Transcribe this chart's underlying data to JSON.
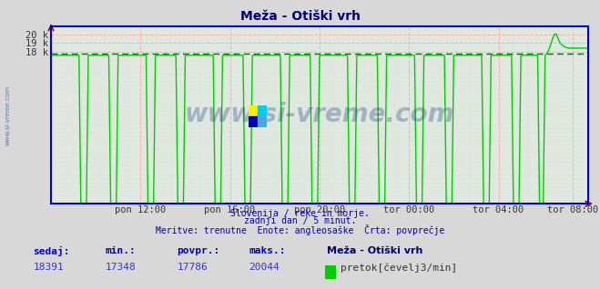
{
  "title": "Meža - Otiški vrh",
  "bg_color": "#d8d8d8",
  "plot_bg_color": "#e0e8e0",
  "line_color": "#00cc00",
  "avg_line_color": "#007700",
  "border_color": "#0000cc",
  "grid_color_major": "#ffaaaa",
  "grid_color_minor": "#ccddcc",
  "title_color": "#000077",
  "watermark": "www.si-vreme.com",
  "watermark_color": "#1a3a7a",
  "subtitle1": "Slovenija / reke in morje.",
  "subtitle2": "zadnji dan / 5 minut.",
  "subtitle3": "Meritve: trenutne  Enote: angleosaške  Črta: povprečje",
  "footer_labels": [
    "sedaj:",
    "min.:",
    "povpr.:",
    "maks.:"
  ],
  "footer_values": [
    "18391",
    "17348",
    "17786",
    "20044"
  ],
  "legend_label": "pretok[čevelj3/min]",
  "legend_color": "#00cc00",
  "station_name": "Meža - Otiški vrh",
  "ylim": [
    0,
    21000
  ],
  "yticks": [
    18000,
    19000,
    20000
  ],
  "ytick_labels": [
    "18 k",
    "19 k",
    "20 k"
  ],
  "avg_value": 17786,
  "n_points": 289,
  "xtick_labels": [
    "pon 12:00",
    "pon 16:00",
    "pon 20:00",
    "tor 00:00",
    "tor 04:00",
    "tor 08:00"
  ],
  "xtick_positions": [
    48,
    96,
    144,
    192,
    240,
    280
  ]
}
